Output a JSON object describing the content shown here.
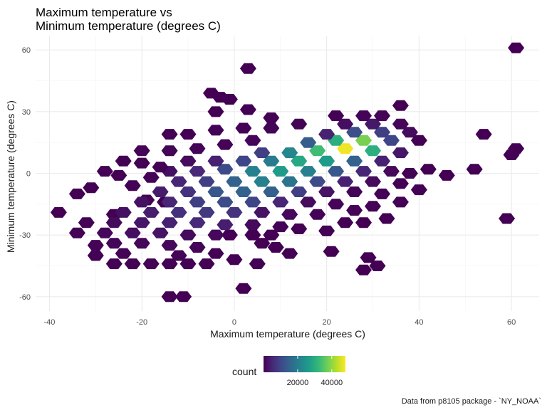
{
  "chart_data": {
    "type": "hexbin",
    "title_lines": [
      "Maximum temperature vs",
      "Minimum temperature (degrees C)"
    ],
    "xlabel": "Maximum temperature (degrees C)",
    "ylabel": "Minimum temperature (degrees C)",
    "caption": "Data from p8105 package - `NY_NOAA`",
    "xlim": [
      -43,
      66
    ],
    "ylim": [
      -67,
      67
    ],
    "x_ticks": [
      -40,
      -20,
      0,
      20,
      40,
      60
    ],
    "y_ticks": [
      -60,
      -30,
      0,
      30,
      60
    ],
    "grid": true,
    "legend": {
      "title": "count",
      "position": "bottom",
      "tick_values": [
        20000,
        40000
      ],
      "tick_labels": [
        "20000",
        "40000"
      ],
      "range": [
        0,
        48000
      ],
      "colors": [
        "#440154",
        "#482878",
        "#3e4a89",
        "#31688e",
        "#26828e",
        "#1f9e89",
        "#35b779",
        "#6ece58",
        "#b5de2b",
        "#fde725"
      ]
    },
    "points": [
      [
        61,
        61,
        10
      ],
      [
        3,
        51,
        10
      ],
      [
        -5,
        39,
        10
      ],
      [
        -3,
        37,
        10
      ],
      [
        -1,
        36,
        10
      ],
      [
        36,
        33,
        10
      ],
      [
        -4,
        30,
        10
      ],
      [
        3,
        31,
        10
      ],
      [
        -14,
        19,
        10
      ],
      [
        -10,
        19,
        10
      ],
      [
        54,
        19,
        10
      ],
      [
        60,
        9,
        10
      ],
      [
        61,
        12,
        10
      ],
      [
        42,
        2,
        10
      ],
      [
        46,
        -1,
        10
      ],
      [
        52,
        2,
        10
      ],
      [
        -25,
        -1,
        10
      ],
      [
        -31,
        -7,
        10
      ],
      [
        -34,
        -10,
        10
      ],
      [
        -38,
        -19,
        10
      ],
      [
        -19,
        -13,
        10
      ],
      [
        -15,
        -14,
        10
      ],
      [
        -26,
        -20,
        10
      ],
      [
        59,
        -22,
        10
      ],
      [
        33,
        -22,
        10
      ],
      [
        28,
        -24,
        10
      ],
      [
        14,
        -27,
        10
      ],
      [
        8,
        -30,
        10
      ],
      [
        4,
        -30,
        10
      ],
      [
        -1,
        -30,
        10
      ],
      [
        6,
        -34,
        10
      ],
      [
        9,
        -36,
        10
      ],
      [
        0,
        -42,
        10
      ],
      [
        12,
        -39,
        10
      ],
      [
        5,
        -44,
        10
      ],
      [
        21,
        -38,
        10
      ],
      [
        29,
        -41,
        10
      ],
      [
        31,
        -45,
        10
      ],
      [
        28,
        -47,
        10
      ],
      [
        2,
        -56,
        10
      ],
      [
        -14,
        -60,
        10
      ],
      [
        -11,
        -60,
        10
      ],
      [
        -26,
        -44,
        200
      ],
      [
        -22,
        -44,
        200
      ],
      [
        -18,
        -44,
        200
      ],
      [
        -14,
        -44,
        200
      ],
      [
        -10,
        -44,
        200
      ],
      [
        -6,
        -44,
        200
      ],
      [
        -30,
        -40,
        200
      ],
      [
        -24,
        -39,
        500
      ],
      [
        -12,
        -40,
        500
      ],
      [
        -4,
        -39,
        200
      ],
      [
        -30,
        -35,
        300
      ],
      [
        -26,
        -34,
        600
      ],
      [
        -20,
        -34,
        800
      ],
      [
        -14,
        -35,
        900
      ],
      [
        -8,
        -36,
        400
      ],
      [
        -34,
        -29,
        200
      ],
      [
        -28,
        -29,
        900
      ],
      [
        -22,
        -29,
        1800
      ],
      [
        -16,
        -29,
        2500
      ],
      [
        -10,
        -30,
        1500
      ],
      [
        -4,
        -30,
        900
      ],
      [
        -32,
        -24,
        300
      ],
      [
        -26,
        -24,
        1500
      ],
      [
        -20,
        -24,
        3000
      ],
      [
        -14,
        -24,
        4500
      ],
      [
        -8,
        -24,
        5500
      ],
      [
        -2,
        -25,
        4000
      ],
      [
        4,
        -25,
        1200
      ],
      [
        10,
        -26,
        300
      ],
      [
        -24,
        -19,
        2000
      ],
      [
        -18,
        -19,
        3800
      ],
      [
        -12,
        -19,
        6500
      ],
      [
        -6,
        -19,
        8000
      ],
      [
        0,
        -19,
        7000
      ],
      [
        6,
        -19,
        2500
      ],
      [
        12,
        -20,
        900
      ],
      [
        18,
        -20,
        300
      ],
      [
        -20,
        -14,
        2200
      ],
      [
        -14,
        -14,
        5000
      ],
      [
        -8,
        -14,
        9000
      ],
      [
        -2,
        -14,
        11000
      ],
      [
        4,
        -14,
        10000
      ],
      [
        10,
        -14,
        5000
      ],
      [
        16,
        -14,
        1500
      ],
      [
        22,
        -15,
        400
      ],
      [
        -16,
        -9,
        3500
      ],
      [
        -10,
        -9,
        6800
      ],
      [
        -4,
        -9,
        13000
      ],
      [
        2,
        -9,
        15000
      ],
      [
        8,
        -9,
        14500
      ],
      [
        14,
        -9,
        9000
      ],
      [
        20,
        -9,
        2500
      ],
      [
        26,
        -9,
        600
      ],
      [
        32,
        -10,
        200
      ],
      [
        -12,
        -4,
        5000
      ],
      [
        -6,
        -4,
        9000
      ],
      [
        0,
        -4,
        15000
      ],
      [
        6,
        -4,
        21000
      ],
      [
        12,
        -4,
        18500
      ],
      [
        18,
        -4,
        11000
      ],
      [
        24,
        -4,
        4500
      ],
      [
        30,
        -4,
        1200
      ],
      [
        36,
        -5,
        200
      ],
      [
        -14,
        1,
        2000
      ],
      [
        -8,
        1,
        5500
      ],
      [
        -2,
        2,
        11000
      ],
      [
        4,
        1,
        21000
      ],
      [
        10,
        1,
        26000
      ],
      [
        16,
        1,
        21000
      ],
      [
        22,
        1,
        13000
      ],
      [
        28,
        1,
        5000
      ],
      [
        34,
        1,
        900
      ],
      [
        -10,
        6,
        1500
      ],
      [
        -4,
        6,
        4500
      ],
      [
        2,
        6,
        10000
      ],
      [
        8,
        6,
        20000
      ],
      [
        14,
        6,
        28500
      ],
      [
        20,
        6,
        26000
      ],
      [
        26,
        6,
        15000
      ],
      [
        32,
        6,
        4500
      ],
      [
        6,
        10,
        9000
      ],
      [
        12,
        10,
        22000
      ],
      [
        18,
        11,
        33000
      ],
      [
        24,
        12,
        47000
      ],
      [
        30,
        11,
        30000
      ],
      [
        36,
        10,
        3000
      ],
      [
        16,
        15,
        14000
      ],
      [
        22,
        16,
        30000
      ],
      [
        28,
        16,
        38000
      ],
      [
        34,
        16,
        10000
      ],
      [
        20,
        19,
        4500
      ],
      [
        26,
        20,
        11500
      ],
      [
        32,
        20,
        9000
      ],
      [
        38,
        20,
        1500
      ],
      [
        24,
        24,
        1800
      ],
      [
        30,
        24,
        3200
      ],
      [
        36,
        24,
        700
      ],
      [
        -24,
        6,
        150
      ],
      [
        -28,
        1,
        150
      ],
      [
        -20,
        11,
        250
      ],
      [
        -14,
        11,
        500
      ],
      [
        -8,
        12,
        400
      ],
      [
        -2,
        14,
        300
      ],
      [
        4,
        16,
        700
      ],
      [
        -4,
        21,
        200
      ],
      [
        2,
        22,
        300
      ],
      [
        8,
        22,
        500
      ],
      [
        14,
        24,
        350
      ],
      [
        8,
        27,
        200
      ],
      [
        22,
        28,
        200
      ],
      [
        28,
        28,
        400
      ],
      [
        32,
        28,
        300
      ],
      [
        -20,
        5,
        200
      ],
      [
        -16,
        3,
        200
      ],
      [
        -22,
        -6,
        200
      ],
      [
        -18,
        -2,
        250
      ],
      [
        38,
        0,
        150
      ],
      [
        40,
        -8,
        150
      ],
      [
        36,
        -14,
        200
      ],
      [
        30,
        -16,
        300
      ],
      [
        26,
        -18,
        250
      ],
      [
        24,
        -24,
        150
      ],
      [
        40,
        16,
        200
      ],
      [
        20,
        -28,
        150
      ]
    ]
  }
}
